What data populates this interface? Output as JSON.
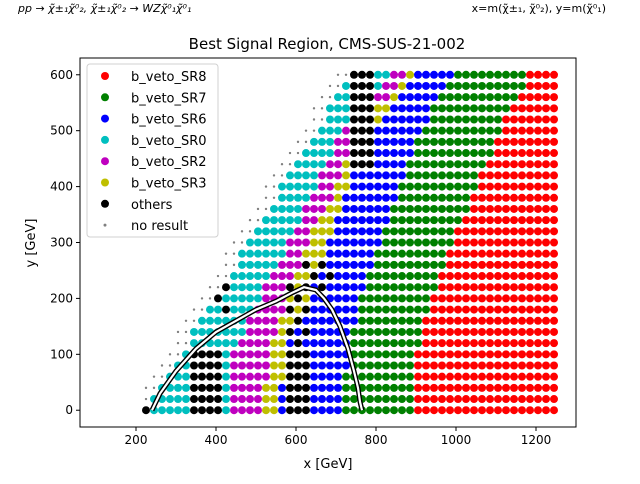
{
  "chart_data": {
    "type": "scatter",
    "title": "Best Signal Region, CMS-SUS-21-002",
    "corner_left": "pp → χ̃±₁χ̃⁰₂, χ̃±₁χ̃⁰₂ → WZχ̃⁰₁χ̃⁰₁",
    "corner_right": "x=m(χ̃±₁, χ̃⁰₂), y=m(χ̃⁰₁)",
    "xlabel": "x [GeV]",
    "ylabel": "y [GeV]",
    "xlim": [
      60,
      1300
    ],
    "ylim": [
      -30,
      630
    ],
    "x_ticks": [
      200,
      400,
      600,
      800,
      1000,
      1200
    ],
    "y_ticks": [
      0,
      100,
      200,
      300,
      400,
      500,
      600
    ],
    "grid": false,
    "legend_position": "top-left",
    "grid_points": {
      "x_start": 225,
      "x_step": 20,
      "x_end": 1245,
      "y_start": 0,
      "y_step": 20,
      "y_end": 600
    },
    "series": [
      {
        "name": "b_veto_SR8",
        "color": "#ff0000",
        "marker": "dot"
      },
      {
        "name": "b_veto_SR7",
        "color": "#008000",
        "marker": "dot"
      },
      {
        "name": "b_veto_SR6",
        "color": "#0000ff",
        "marker": "dot"
      },
      {
        "name": "b_veto_SR0",
        "color": "#00bfbf",
        "marker": "dot"
      },
      {
        "name": "b_veto_SR2",
        "color": "#bf00bf",
        "marker": "dot"
      },
      {
        "name": "b_veto_SR3",
        "color": "#bfbf00",
        "marker": "dot"
      },
      {
        "name": "others",
        "color": "#000000",
        "marker": "dot"
      },
      {
        "name": "no result",
        "color": "#808080",
        "marker": "small-dot"
      }
    ],
    "region_boundaries": [
      {
        "series": "b_veto_SR8",
        "min_x_at_y": [
          [
            0,
            900
          ],
          [
            100,
            905
          ],
          [
            200,
            935
          ],
          [
            300,
            990
          ],
          [
            400,
            1050
          ],
          [
            500,
            1110
          ],
          [
            600,
            1180
          ]
        ]
      },
      {
        "series": "b_veto_SR7",
        "min_x_at_y": [
          [
            0,
            710
          ],
          [
            100,
            730
          ],
          [
            200,
            760
          ],
          [
            300,
            810
          ],
          [
            400,
            860
          ],
          [
            500,
            910
          ],
          [
            600,
            990
          ]
        ]
      },
      {
        "series": "b_veto_SR6",
        "min_x_at_y": [
          [
            0,
            560
          ],
          [
            100,
            570
          ],
          [
            200,
            630
          ],
          [
            300,
            680
          ],
          [
            400,
            730
          ],
          [
            500,
            790
          ],
          [
            600,
            900
          ]
        ]
      },
      {
        "series": "b_veto_SR3",
        "min_x_at_y": [
          [
            0,
            520
          ],
          [
            100,
            530
          ],
          [
            200,
            575
          ],
          [
            300,
            630
          ],
          [
            400,
            700
          ],
          [
            500,
            760
          ],
          [
            600,
            870
          ]
        ]
      },
      {
        "series": "b_veto_SR2",
        "min_x_at_y": [
          [
            0,
            430
          ],
          [
            100,
            440
          ],
          [
            200,
            510
          ],
          [
            300,
            580
          ],
          [
            400,
            650
          ],
          [
            500,
            710
          ],
          [
            600,
            830
          ]
        ]
      },
      {
        "series": "b_veto_SR0",
        "min_x_at_y": [
          [
            0,
            230
          ],
          [
            100,
            300
          ],
          [
            200,
            360
          ],
          [
            300,
            440
          ],
          [
            400,
            520
          ],
          [
            500,
            610
          ],
          [
            600,
            720
          ]
        ]
      }
    ],
    "others_clusters": [
      {
        "x": [
          330,
          410
        ],
        "y": [
          0,
          100
        ]
      },
      {
        "x": [
          580,
          640
        ],
        "y": [
          0,
          220
        ]
      },
      {
        "x": [
          400,
          440
        ],
        "y": [
          180,
          240
        ]
      },
      {
        "x": [
          620,
          700
        ],
        "y": [
          220,
          260
        ]
      },
      {
        "x": [
          730,
          790
        ],
        "y": [
          440,
          600
        ]
      }
    ],
    "exclusion_contour": {
      "x": [
        240,
        260,
        300,
        350,
        400,
        450,
        500,
        550,
        590,
        620,
        650,
        670,
        690,
        710,
        730,
        745,
        755,
        760,
        765
      ],
      "y": [
        0,
        30,
        70,
        110,
        140,
        160,
        180,
        195,
        210,
        220,
        215,
        200,
        180,
        150,
        110,
        70,
        40,
        15,
        0
      ]
    }
  }
}
